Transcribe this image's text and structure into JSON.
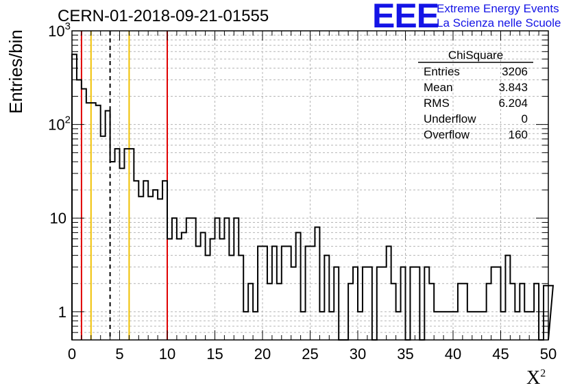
{
  "title": "CERN-01-2018-09-21-01555",
  "logo": {
    "mark": "EEE",
    "line1": "Extreme Energy Events",
    "line2": "La Scienza nelle Scuole",
    "color": "#1414e6"
  },
  "colors": {
    "histogram": "#000000",
    "red_line": "#e00000",
    "yellow_line": "#f0c000",
    "grid": "#b4b4b4"
  },
  "chart_data": {
    "type": "bar",
    "histogram_style": "step",
    "title": "CERN-01-2018-09-21-01555",
    "xlabel": "X²",
    "xlabel_main": "X",
    "xlabel_sup": "2",
    "ylabel": "Entries/bin",
    "xlim": [
      0,
      50
    ],
    "ylim": [
      0.5,
      1000
    ],
    "yscale": "log",
    "grid": true,
    "bin_width": 0.5,
    "x_ticks": [
      "0",
      "5",
      "10",
      "15",
      "20",
      "25",
      "30",
      "35",
      "40",
      "45",
      "50"
    ],
    "y_ticks": [
      {
        "value": 1,
        "label": "1"
      },
      {
        "value": 10,
        "label": "10"
      },
      {
        "value": 100,
        "label": "10",
        "exp": "2"
      },
      {
        "value": 1000,
        "label": "10",
        "exp": "3"
      }
    ],
    "values": [
      560,
      300,
      240,
      170,
      170,
      160,
      75,
      140,
      40,
      55,
      34,
      55,
      55,
      25,
      17,
      25,
      17,
      20,
      16,
      25,
      6,
      10,
      6,
      7,
      10,
      10,
      5,
      7,
      4,
      6,
      10,
      6,
      10,
      4,
      10,
      4,
      1,
      2,
      1,
      5,
      5,
      2,
      5,
      2,
      5,
      5,
      3,
      7,
      1,
      5,
      5,
      8,
      1,
      4,
      1,
      3,
      0.5,
      0.5,
      2,
      3,
      1,
      3,
      3,
      0.5,
      3,
      3,
      5,
      2,
      1,
      3,
      0.5,
      3,
      3,
      0.5,
      3,
      2,
      1,
      1,
      1,
      1,
      1,
      2,
      2,
      1,
      1,
      1,
      1,
      2,
      3,
      3,
      1,
      4,
      2,
      1,
      2,
      1,
      1,
      2,
      0.5,
      1.9,
      1.9
    ],
    "vertical_lines": [
      {
        "x": 1,
        "color": "red",
        "style": "solid"
      },
      {
        "x": 2,
        "color": "yellow",
        "style": "solid"
      },
      {
        "x": 4,
        "color": "black",
        "style": "dashed"
      },
      {
        "x": 6,
        "color": "yellow",
        "style": "solid"
      },
      {
        "x": 10,
        "color": "red",
        "style": "solid"
      }
    ],
    "stats_box": {
      "name": "ChiSquare",
      "rows": [
        {
          "label": "Entries",
          "value": "3206"
        },
        {
          "label": "Mean",
          "value": "3.843"
        },
        {
          "label": "RMS",
          "value": "6.204"
        },
        {
          "label": "Underflow",
          "value": "0"
        },
        {
          "label": "Overflow",
          "value": "160"
        }
      ]
    }
  }
}
